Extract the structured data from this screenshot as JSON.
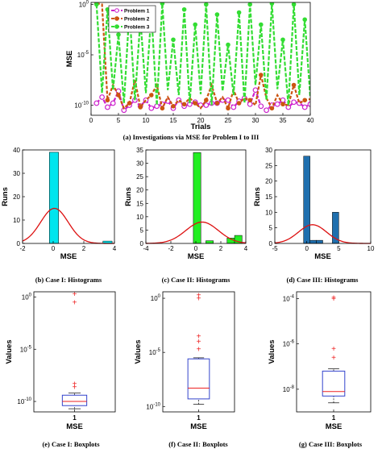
{
  "chart_data": [
    {
      "id": "a",
      "type": "line",
      "caption": "(a)    Investigations via MSE for Problem I to III",
      "xlabel": "Trials",
      "ylabel": "MSE",
      "xlim": [
        0,
        40
      ],
      "ylim_log10": [
        -11,
        0.2
      ],
      "x_ticks": [
        "0",
        "5",
        "10",
        "15",
        "20",
        "25",
        "30",
        "35",
        "40"
      ],
      "y_ticks": [
        {
          "exp": "0"
        },
        {
          "exp": "-5"
        },
        {
          "exp": "-10"
        }
      ],
      "y_scale": "log",
      "legend_position": "top-left",
      "series": [
        {
          "name": "Problem 1",
          "color": "#cc22cc",
          "dash": "5,2",
          "marker": "circle",
          "log10_values": [
            -9.8,
            -9.2,
            -10.2,
            -9.8,
            -8.6,
            -10.5,
            -10.0,
            -9.5,
            -10.1,
            -9.5,
            -10.3,
            -10.1,
            -9.9,
            -9.6,
            -10.3,
            -9.5,
            -10.1,
            -9.9,
            -9.7,
            -10.0,
            -10.0,
            -9.8,
            -9.8,
            -9.5,
            -9.5,
            -10.2,
            -9.6,
            -9.3,
            -9.9,
            -8.5,
            -10.1,
            -10.5,
            -10.0,
            -9.9,
            -9.5,
            -10.2,
            -9.7,
            -9.8,
            -10.2,
            -9.9
          ]
        },
        {
          "name": "Problem 2",
          "color": "#cc5511",
          "dash": "4,2",
          "marker": "circle",
          "log10_values": [
            0.1,
            0.0,
            -9.5,
            -8.0,
            -9.0,
            -10.3,
            -9.8,
            -7.5,
            -10.2,
            -9.5,
            -9.0,
            -8.0,
            -10.3,
            -9.2,
            -10.1,
            -9.5,
            -9.9,
            -9.3,
            -9.8,
            -10.3,
            -9.5,
            -8.0,
            -9.8,
            -9.2,
            -10.3,
            -8.5,
            -9.8,
            -9.3,
            -9.5,
            -10.0,
            -7.0,
            -9.3,
            -10.3,
            -9.0,
            -9.9,
            -10.0,
            -8.0,
            -9.8,
            -9.5,
            -9.4
          ]
        },
        {
          "name": "Problem 3",
          "color": "#33dd33",
          "dash": "5,2",
          "marker": "circle",
          "log10_values": [
            0.0,
            -8.8,
            -0.5,
            -8.5,
            -3.0,
            -9.8,
            -0.5,
            -9.5,
            -1.5,
            -8.8,
            -0.8,
            -10.0,
            0.1,
            -8.5,
            -3.5,
            -9.0,
            -0.5,
            -9.8,
            -2.0,
            -8.9,
            0.0,
            -10.0,
            -1.0,
            -8.6,
            -4.0,
            -9.0,
            -0.8,
            -9.8,
            0.0,
            -8.0,
            -2.0,
            -9.5,
            0.1,
            -8.4,
            -3.5,
            -10.0,
            0.0,
            -9.0,
            -1.5,
            -9.2
          ]
        }
      ]
    },
    {
      "id": "b",
      "type": "bar",
      "caption": "(b) Case I: Histograms",
      "xlabel": "MSE",
      "ylabel": "Runs",
      "bar_color": "#00e5ee",
      "curve_color": "#dd1111",
      "xlim": [
        -2,
        4
      ],
      "ylim": [
        0,
        40
      ],
      "x_ticks": [
        "-2",
        "0",
        "2",
        "4"
      ],
      "y_ticks": [
        "0",
        "10",
        "20",
        "30",
        "40"
      ],
      "bins": [
        {
          "center": 0.05,
          "width": 0.6,
          "count": 39
        },
        {
          "center": 3.55,
          "width": 0.6,
          "count": 1
        }
      ],
      "normal_fit": {
        "mean": 0.08,
        "sd": 0.9,
        "peak": 15
      }
    },
    {
      "id": "c",
      "type": "bar",
      "caption": "(c) Case II: Histograms",
      "xlabel": "MSE",
      "ylabel": "Runs",
      "bar_color": "#22ee22",
      "curve_color": "#dd1111",
      "xlim": [
        -4,
        4
      ],
      "ylim": [
        0,
        35
      ],
      "x_ticks": [
        "-4",
        "-2",
        "0",
        "2",
        "4"
      ],
      "y_ticks": [
        "0",
        "5",
        "10",
        "15",
        "20",
        "25",
        "30",
        "35"
      ],
      "bins": [
        {
          "center": 0.1,
          "width": 0.6,
          "count": 34
        },
        {
          "center": 1.1,
          "width": 0.6,
          "count": 1
        },
        {
          "center": 2.8,
          "width": 0.6,
          "count": 2
        },
        {
          "center": 3.4,
          "width": 0.6,
          "count": 3
        }
      ],
      "normal_fit": {
        "mean": 0.5,
        "sd": 1.3,
        "peak": 8
      }
    },
    {
      "id": "d",
      "type": "bar",
      "caption": "(d) Case III: Histograms",
      "xlabel": "MSE",
      "ylabel": "Runs",
      "bar_color": "#1f6fae",
      "curve_color": "#dd1111",
      "xlim": [
        -5,
        10
      ],
      "ylim": [
        0,
        30
      ],
      "x_ticks": [
        "-5",
        "0",
        "5",
        "10"
      ],
      "y_ticks": [
        "0",
        "5",
        "10",
        "15",
        "20",
        "25",
        "30"
      ],
      "bins": [
        {
          "center": 0.0,
          "width": 1.0,
          "count": 28
        },
        {
          "center": 1.0,
          "width": 1.0,
          "count": 1
        },
        {
          "center": 2.0,
          "width": 1.0,
          "count": 1
        },
        {
          "center": 4.5,
          "width": 1.0,
          "count": 10
        }
      ],
      "normal_fit": {
        "mean": 0.9,
        "sd": 2.2,
        "peak": 6
      }
    },
    {
      "id": "e",
      "type": "box",
      "caption": "(e) Case I: Boxplots",
      "xlabel": "MSE",
      "ylabel": "Values",
      "category": "1",
      "ylim_log10": [
        -11,
        0.5
      ],
      "y_ticks": [
        {
          "exp": "0"
        },
        {
          "exp": "-5"
        },
        {
          "exp": "-10"
        }
      ],
      "box_log10": {
        "whisker_low": -10.7,
        "q1": -10.4,
        "median": -10.0,
        "q3": -9.4,
        "whisker_high": -9.2
      },
      "outliers_log10": [
        0.3,
        -0.5,
        -8.3,
        -8.6
      ]
    },
    {
      "id": "f",
      "type": "box",
      "caption": "(f) Case II: Boxplots",
      "xlabel": "MSE",
      "ylabel": "Values",
      "category": "1",
      "ylim_log10": [
        -10.5,
        0.6
      ],
      "y_ticks": [
        {
          "exp": "0"
        },
        {
          "exp": "-5"
        },
        {
          "exp": "-10"
        }
      ],
      "box_log10": {
        "whisker_low": -9.8,
        "q1": -9.3,
        "median": -8.3,
        "q3": -5.6,
        "whisker_high": -5.5
      },
      "outliers_log10": [
        0.3,
        0.0,
        -3.5,
        -4.0,
        -4.7
      ]
    },
    {
      "id": "g",
      "type": "box",
      "caption": "(g) Case III: Boxplots",
      "xlabel": "MSE",
      "ylabel": "Values",
      "category": "1",
      "ylim_log10": [
        -9,
        -3.7
      ],
      "y_ticks": [
        {
          "exp": "-4"
        },
        {
          "exp": "-6"
        },
        {
          "exp": "-8"
        }
      ],
      "box_log10": {
        "whisker_low": -8.6,
        "q1": -8.3,
        "median": -8.1,
        "q3": -7.2,
        "whisker_high": -7.1
      },
      "outliers_log10": [
        -3.95,
        -4.0,
        -6.2,
        -6.6
      ]
    }
  ]
}
